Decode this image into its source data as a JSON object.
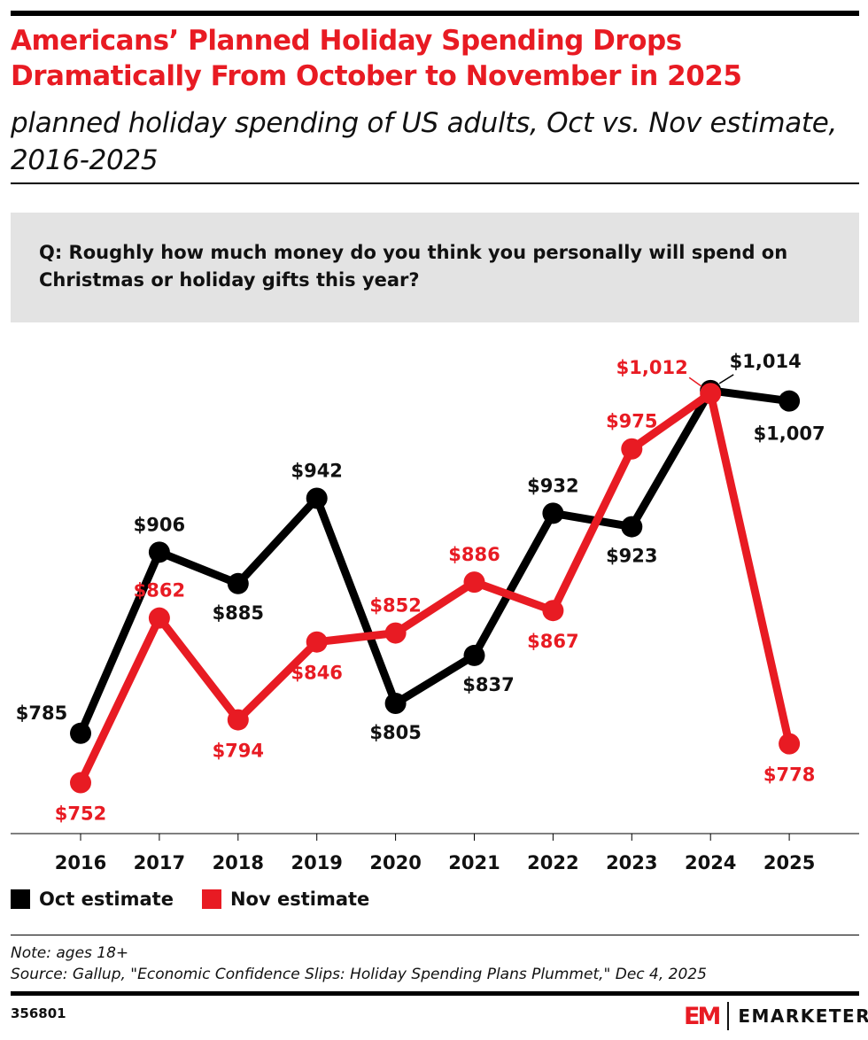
{
  "header": {
    "title": "Americans’ Planned Holiday Spending Drops Dramatically From October to November in 2025",
    "subtitle": "planned holiday spending of US adults, Oct vs. Nov estimate, 2016-2025"
  },
  "question": "Q: Roughly how much money do you think you personally will spend on Christmas or holiday gifts this year?",
  "chart_data": {
    "type": "line",
    "x": [
      "2016",
      "2017",
      "2018",
      "2019",
      "2020",
      "2021",
      "2022",
      "2023",
      "2024",
      "2025"
    ],
    "series": [
      {
        "name": "Oct estimate",
        "color": "#000000",
        "values": [
          785,
          906,
          885,
          942,
          805,
          837,
          932,
          923,
          1014,
          1007
        ],
        "labels": [
          "$785",
          "$906",
          "$885",
          "$942",
          "$805",
          "$837",
          "$932",
          "$923",
          "$1,014",
          "$1,007"
        ]
      },
      {
        "name": "Nov estimate",
        "color": "#e81b23",
        "values": [
          752,
          862,
          794,
          846,
          852,
          886,
          867,
          975,
          1012,
          778
        ],
        "labels": [
          "$752",
          "$862",
          "$794",
          "$846",
          "$852",
          "$886",
          "$867",
          "$975",
          "$1,012",
          "$778"
        ]
      }
    ],
    "ylim": [
      718,
      1050
    ],
    "grid": false,
    "legend": "bottom-left"
  },
  "footer": {
    "note": "Note: ages 18+",
    "source": "Source: Gallup, \"Economic Confidence Slips: Holiday Spending Plans Plummet,\" Dec 4, 2025",
    "id": "356801",
    "brand": "EMARKETER",
    "brand_mark": "EM"
  }
}
